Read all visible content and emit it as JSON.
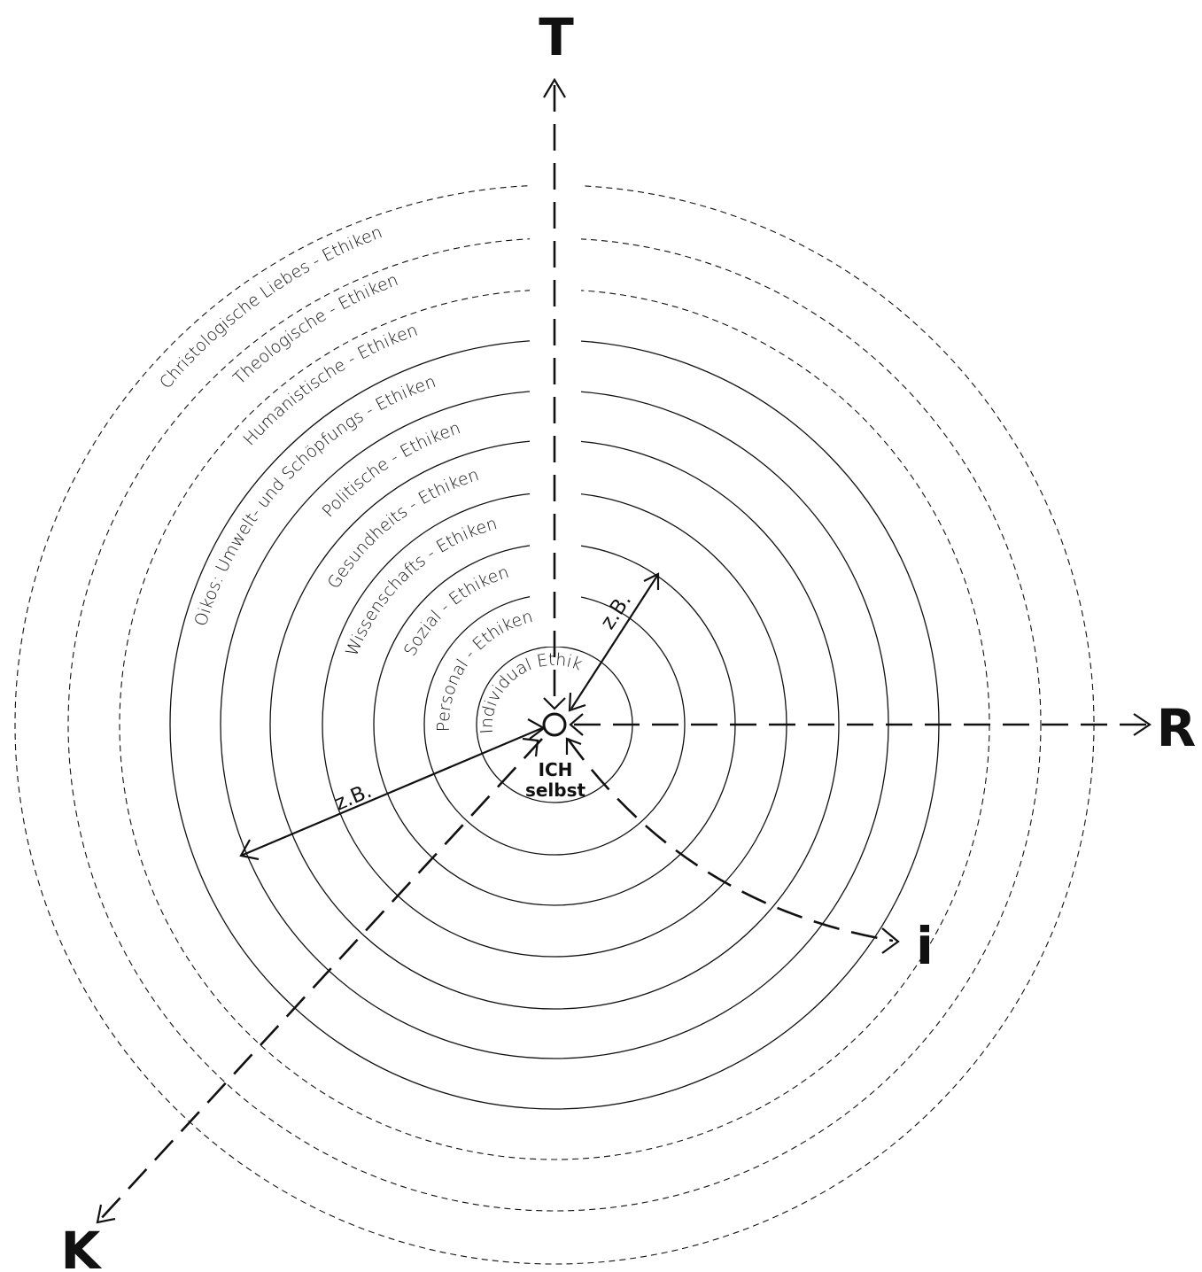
{
  "axes": {
    "T": "T",
    "R": "R",
    "i": "i",
    "K": "K"
  },
  "center": {
    "line1": "ICH",
    "line2": "selbst"
  },
  "inner_label": "Individual Ethik",
  "rings": [
    "Personal - Ethiken",
    "Sozial - Ethiken",
    "Wissenschafts - Ethiken",
    "Gesundheits - Ethiken",
    "Politische - Ethiken",
    "Oikos: Umwelt- und Schöpfungs - Ethiken",
    "Humanistische - Ethiken",
    "Theologische - Ethiken",
    "Christologische Liebes - Ethiken"
  ],
  "example_label": "z.B."
}
